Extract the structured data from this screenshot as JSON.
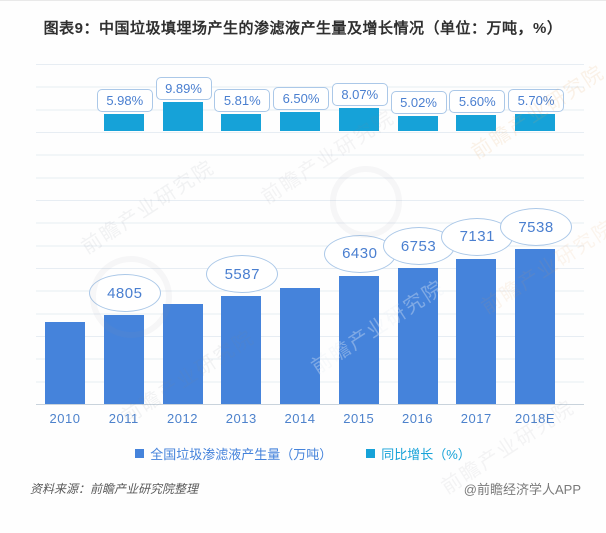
{
  "title": "图表9：中国垃圾填埋场产生的渗滤液产生量及增长情况（单位：万吨，%）",
  "chart_data": {
    "type": "bar",
    "title": "图表9：中国垃圾填埋场产生的渗滤液产生量及增长情况（单位：万吨，%）",
    "categories": [
      "2010",
      "2011",
      "2012",
      "2013",
      "2014",
      "2015",
      "2016",
      "2017",
      "2018E"
    ],
    "series": [
      {
        "name": "全国垃圾渗滤液产生量（万吨）",
        "color": "#4583db",
        "values": [
          4534,
          4805,
          5280,
          5587,
          5950,
          6430,
          6753,
          7131,
          7538
        ],
        "labels": [
          "",
          "4805",
          "",
          "5587",
          "",
          "6430",
          "6753",
          "7131",
          "7538"
        ]
      },
      {
        "name": "同比增长（%）",
        "color": "#16a2d8",
        "values": [
          null,
          5.98,
          9.89,
          5.81,
          6.5,
          8.07,
          5.02,
          5.6,
          5.7
        ],
        "labels": [
          "",
          "5.98%",
          "9.89%",
          "5.81%",
          "6.50%",
          "8.07%",
          "5.02%",
          "5.60%",
          "5.70%"
        ]
      }
    ],
    "legend_position": "bottom",
    "grid": true,
    "xlabel": "",
    "ylabel": ""
  },
  "footer": {
    "source": "资料来源：前瞻产业研究院整理",
    "credit": "@前瞻经济学人APP"
  },
  "watermark": {
    "text": "前瞻产业研究院"
  },
  "colors": {
    "bar_production": "#4583db",
    "bar_growth": "#16a2d8",
    "callout_border": "#abc8e8",
    "callout_text": "#4a7fd0",
    "axis_text": "#4d82cc",
    "gridline": "#e7edf3"
  }
}
